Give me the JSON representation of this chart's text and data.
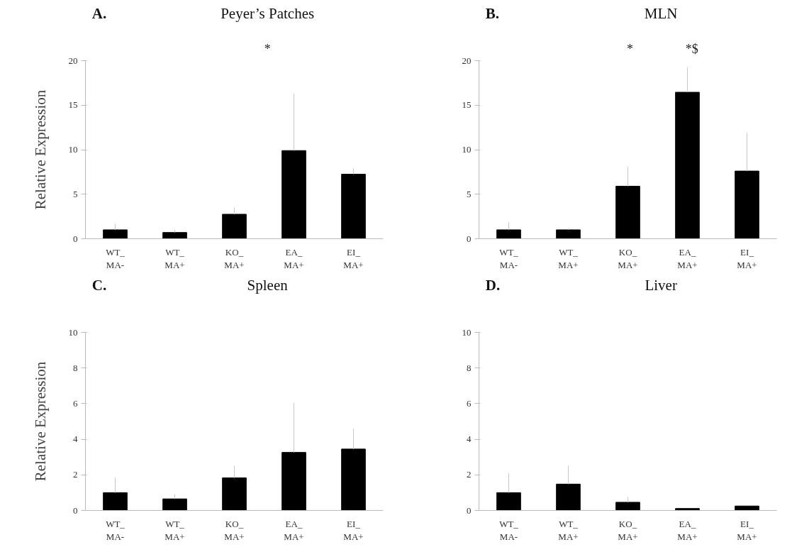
{
  "chart_data": [
    {
      "type": "bar",
      "subtitle": "A.",
      "title": "Peyer’s Patches",
      "ylabel": "Relative Expression",
      "categories": [
        "WT_\nMA-",
        "WT_\nMA+",
        "KO_\nMA+",
        "EA_\nMA+",
        "EI_\nMA+"
      ],
      "values": [
        1.0,
        0.7,
        2.75,
        9.9,
        7.25
      ],
      "errors": [
        [
          1.0,
          1.7
        ],
        [
          0.7,
          1.0
        ],
        [
          2.75,
          3.5
        ],
        [
          9.9,
          16.3
        ],
        [
          7.25,
          7.9
        ]
      ],
      "color": "#000000",
      "ylim": [
        0,
        20
      ],
      "yticks": [
        0,
        5,
        10,
        15,
        20
      ],
      "grid": false,
      "annotations": [
        "*"
      ]
    },
    {
      "type": "bar",
      "subtitle": "B.",
      "title": "MLN",
      "categories": [
        "WT_\nMA-",
        "WT_\nMA+",
        "KO_\nMA+",
        "EA_\nMA+",
        "EI_\nMA+"
      ],
      "values": [
        1.0,
        1.0,
        5.9,
        16.45,
        7.6
      ],
      "errors": [
        [
          1.0,
          1.85
        ],
        [
          1.0,
          1.2
        ],
        [
          5.9,
          8.1
        ],
        [
          16.45,
          19.25
        ],
        [
          7.6,
          11.9
        ]
      ],
      "color": "#000000",
      "ylim": [
        0,
        20
      ],
      "yticks": [
        0,
        5,
        10,
        15,
        20
      ],
      "grid": false,
      "annotations": [
        "*",
        "*$"
      ]
    },
    {
      "type": "bar",
      "subtitle": "C.",
      "title": "Spleen",
      "ylabel": "Relative Expression",
      "categories": [
        "WT_\nMA-",
        "WT_\nMA+",
        "KO_\nMA+",
        "EA_\nMA+",
        "EI_\nMA+"
      ],
      "values": [
        1.0,
        0.65,
        1.83,
        3.26,
        3.45
      ],
      "errors": [
        [
          1.0,
          1.84
        ],
        [
          0.65,
          0.9
        ],
        [
          1.83,
          2.5
        ],
        [
          3.26,
          6.05
        ],
        [
          3.45,
          4.6
        ]
      ],
      "color": "#000000",
      "ylim": [
        0,
        10
      ],
      "yticks": [
        0,
        2,
        4,
        6,
        8,
        10
      ],
      "grid": false
    },
    {
      "type": "bar",
      "subtitle": "D.",
      "title": "Liver",
      "categories": [
        "WT_\nMA-",
        "WT_\nMA+",
        "KO_\nMA+",
        "EA_\nMA+",
        "EI_\nMA+"
      ],
      "values": [
        1.0,
        1.48,
        0.46,
        0.11,
        0.25
      ],
      "errors": [
        [
          1.0,
          2.1
        ],
        [
          1.48,
          2.5
        ],
        [
          0.46,
          0.75
        ],
        null,
        null
      ],
      "color": "#000000",
      "ylim": [
        0,
        10
      ],
      "yticks": [
        0,
        2,
        4,
        6,
        8,
        10
      ],
      "grid": false
    }
  ]
}
